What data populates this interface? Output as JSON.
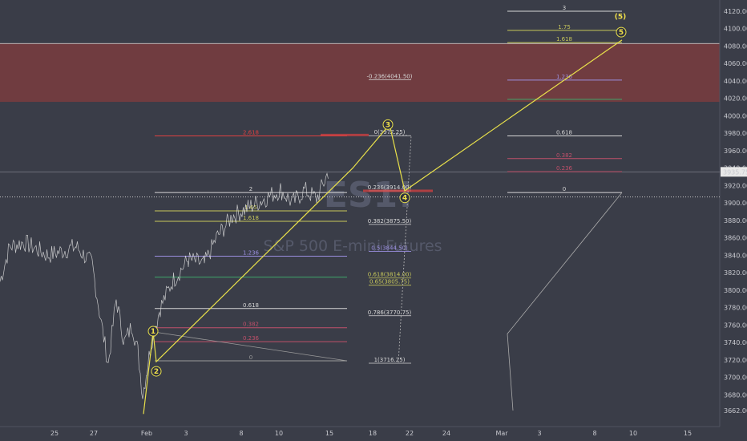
{
  "chart_data": {
    "type": "line",
    "watermark_symbol": "ES1!",
    "watermark_name": "S&P 500 E-mini Futures",
    "y_ticks": [
      3662.0,
      3680.0,
      3700.0,
      3720.0,
      3740.0,
      3760.0,
      3780.0,
      3800.0,
      3820.0,
      3840.0,
      3860.0,
      3880.0,
      3900.0,
      3920.0,
      3940.0,
      3960.0,
      3980.0,
      4000.0,
      4020.0,
      4040.0,
      4060.0,
      4080.0,
      4100.0,
      4120.0
    ],
    "ylim": [
      3652,
      4127
    ],
    "x_ticks": [
      "25",
      "27",
      "Feb",
      "3",
      "8",
      "10",
      "15",
      "18",
      "22",
      "24",
      "Mar",
      "3",
      "8",
      "10",
      "15"
    ],
    "last_price": "3935.75",
    "resistance_zone": [
      4016,
      4083
    ],
    "wave_labels": [
      {
        "label": "1",
        "price": 3753,
        "circled": true
      },
      {
        "label": "2",
        "price": 3707,
        "circled": true
      },
      {
        "label": "3",
        "price": 3990,
        "circled": true
      },
      {
        "label": "4",
        "price": 3906,
        "circled": true
      },
      {
        "label": "5",
        "price": 4096,
        "circled": true
      },
      {
        "label": "(5)",
        "price": 4115,
        "circled": false
      }
    ],
    "fib_left": [
      {
        "label": "2.618",
        "price": 3977,
        "color": "#e04040"
      },
      {
        "label": "2",
        "price": 3912,
        "color": "#d6d6d6"
      },
      {
        "label": "1.65",
        "price": 3891,
        "color": "#c8c85a"
      },
      {
        "label": "1.618",
        "price": 3879,
        "color": "#c8c85a"
      },
      {
        "label": "1.236",
        "price": 3839,
        "color": "#9b8fe0"
      },
      {
        "label": "",
        "price": 3815,
        "color": "#3fa86a"
      },
      {
        "label": "0.618",
        "price": 3779,
        "color": "#d6d6d6"
      },
      {
        "label": "0.382",
        "price": 3757,
        "color": "#c0506a"
      },
      {
        "label": "0.236",
        "price": 3741,
        "color": "#c0506a"
      },
      {
        "label": "0",
        "price": 3719,
        "color": "#9a9a9a"
      }
    ],
    "fib_mid": [
      {
        "label": "-0.236(4041.50)",
        "price": 4041.5,
        "color": "#d6d6d6"
      },
      {
        "label": "0(3977.25)",
        "price": 3977.25,
        "color": "#d6d6d6"
      },
      {
        "label": "0.236(3914.00)",
        "price": 3914.0,
        "color": "#d6d6d6"
      },
      {
        "label": "0.382(3875.50)",
        "price": 3875.5,
        "color": "#d6d6d6"
      },
      {
        "label": "0.5(3844.50)",
        "price": 3844.5,
        "color": "#9b8fe0"
      },
      {
        "label": "0.618(3814.00)",
        "price": 3814.0,
        "color": "#c8c85a"
      },
      {
        "label": "0.65(3805.75)",
        "price": 3805.75,
        "color": "#c8c85a"
      },
      {
        "label": "0.786(3770.75)",
        "price": 3770.75,
        "color": "#d6d6d6"
      },
      {
        "label": "1(3716.25)",
        "price": 3716.25,
        "color": "#d6d6d6"
      }
    ],
    "fib_right": [
      {
        "label": "3",
        "price": 4120,
        "color": "#d6d6d6"
      },
      {
        "label": "1.75",
        "price": 4098,
        "color": "#c8c85a"
      },
      {
        "label": "1.618",
        "price": 4084,
        "color": "#c8c85a"
      },
      {
        "label": "1.236",
        "price": 4041,
        "color": "#9b8fe0"
      },
      {
        "label": "",
        "price": 4019,
        "color": "#3fa86a"
      },
      {
        "label": "0.618",
        "price": 3977,
        "color": "#d6d6d6"
      },
      {
        "label": "0.382",
        "price": 3951,
        "color": "#c0506a"
      },
      {
        "label": "0.236",
        "price": 3936,
        "color": "#c0506a"
      },
      {
        "label": "0",
        "price": 3912,
        "color": "#d6d6d6"
      }
    ],
    "wave_path": [
      {
        "x": "Feb",
        "price": 3658
      },
      {
        "x": "Feb",
        "price": 3752
      },
      {
        "x": "Feb+",
        "price": 3718
      },
      {
        "x": "Feb 15",
        "price": 3940
      },
      {
        "x": "Feb 20",
        "price": 3990
      },
      {
        "x": "Feb 21",
        "price": 3914
      },
      {
        "x": "Mar 9",
        "price": 4087
      }
    ],
    "colors": {
      "background": "#3a3d48",
      "zone": "#7a3c40",
      "wave": "#e8e04a",
      "price": "#e0e0e0"
    }
  }
}
